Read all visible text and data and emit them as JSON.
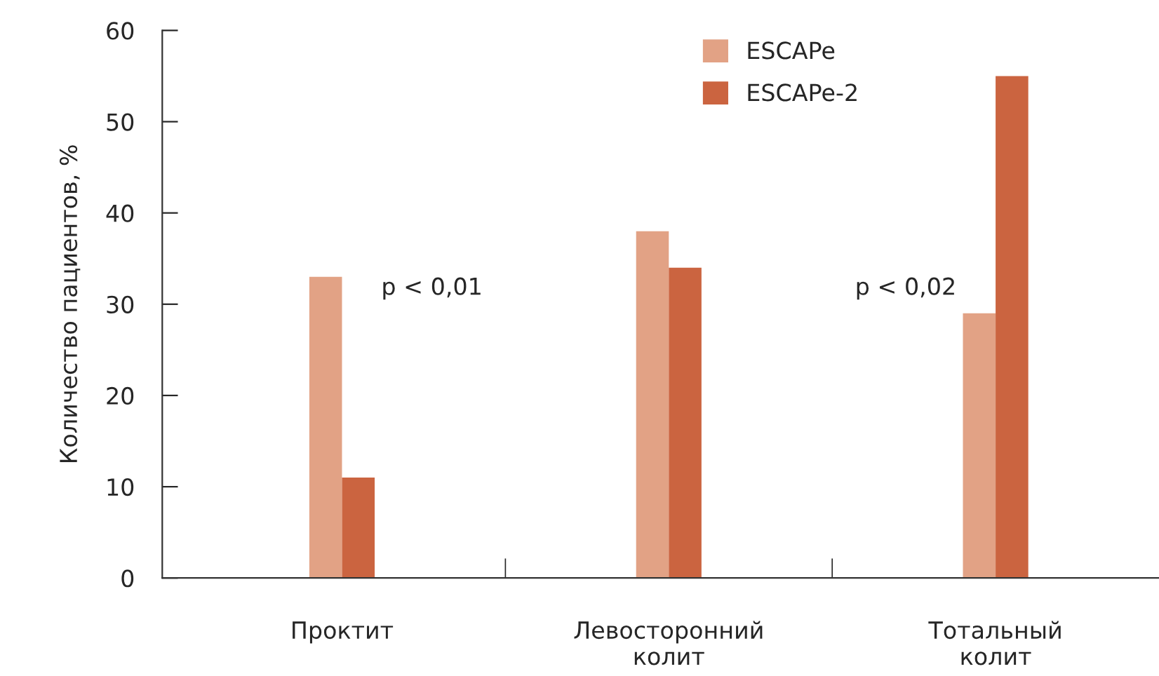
{
  "chart_data": {
    "type": "bar",
    "ylabel": "Количество пациентов, %",
    "categories": [
      "Проктит",
      "Левосторонний\nколит",
      "Тотальный\nколит"
    ],
    "series": [
      {
        "name": "ESCAPe",
        "color": "#e2a285",
        "values": [
          33,
          38,
          29
        ]
      },
      {
        "name": "ESCAPe-2",
        "color": "#cb6440",
        "values": [
          11,
          34,
          55
        ]
      }
    ],
    "ylim": [
      0,
      60
    ],
    "yticks": [
      0,
      10,
      20,
      30,
      40,
      50,
      60
    ],
    "grid": false,
    "legend": "top right",
    "annotations": [
      {
        "text": "p < 0,01",
        "x": "Проктит",
        "y": 30.5
      },
      {
        "text": "p < 0,02",
        "x": "Тотальный\nколит",
        "y": 30.5
      }
    ]
  }
}
